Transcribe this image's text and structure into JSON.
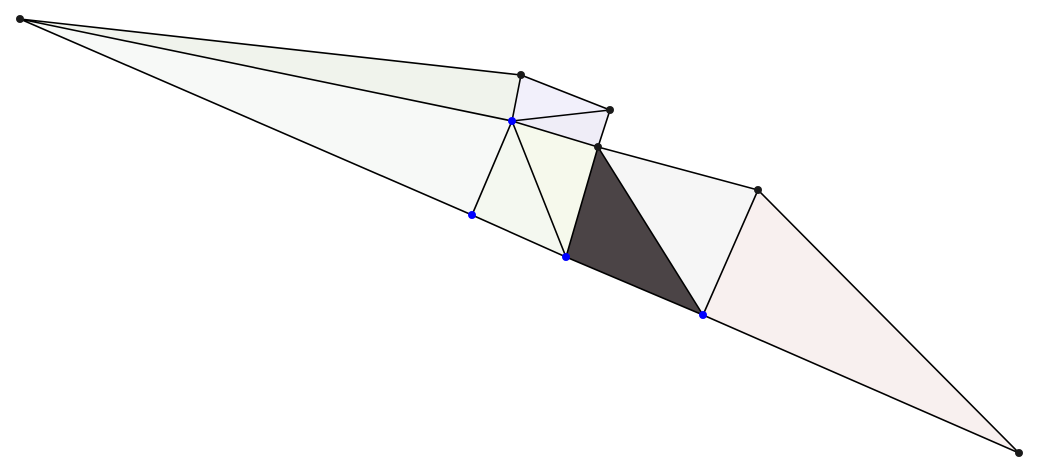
{
  "diagram": {
    "type": "triangle-mesh",
    "background": "#ffffff",
    "edge_color": "#000000",
    "vertex_colors": {
      "boundary": "#1a1a1a",
      "interior": "#0000ff"
    },
    "vertices": [
      {
        "id": "v0",
        "kind": "boundary"
      },
      {
        "id": "v1",
        "kind": "boundary"
      },
      {
        "id": "v2",
        "kind": "boundary"
      },
      {
        "id": "v3",
        "kind": "interior"
      },
      {
        "id": "v4",
        "kind": "boundary"
      },
      {
        "id": "v5",
        "kind": "interior"
      },
      {
        "id": "v6",
        "kind": "interior"
      },
      {
        "id": "v7",
        "kind": "boundary"
      },
      {
        "id": "v8",
        "kind": "interior"
      },
      {
        "id": "v9",
        "kind": "boundary"
      }
    ],
    "faces": [
      {
        "id": "f0",
        "verts": [
          "v0",
          "v1",
          "v3"
        ],
        "color": "#f0f3ec"
      },
      {
        "id": "f1",
        "verts": [
          "v0",
          "v3",
          "v5"
        ],
        "color": "#f7f9f7"
      },
      {
        "id": "f2",
        "verts": [
          "v1",
          "v2",
          "v3"
        ],
        "color": "#f2f0fb"
      },
      {
        "id": "f3",
        "verts": [
          "v3",
          "v2",
          "v4"
        ],
        "color": "#efedf7"
      },
      {
        "id": "f4",
        "verts": [
          "v3",
          "v5",
          "v6"
        ],
        "color": "#f4f8f0"
      },
      {
        "id": "f5",
        "verts": [
          "v3",
          "v4",
          "v6"
        ],
        "color": "#f6f9ec"
      },
      {
        "id": "f6",
        "verts": [
          "v4",
          "v6",
          "v8"
        ],
        "color": "#4b4446"
      },
      {
        "id": "f7",
        "verts": [
          "v4",
          "v7",
          "v8"
        ],
        "color": "#f6f6f6"
      },
      {
        "id": "f8",
        "verts": [
          "v7",
          "v8",
          "v9"
        ],
        "color": "#f8f0ef"
      }
    ]
  }
}
